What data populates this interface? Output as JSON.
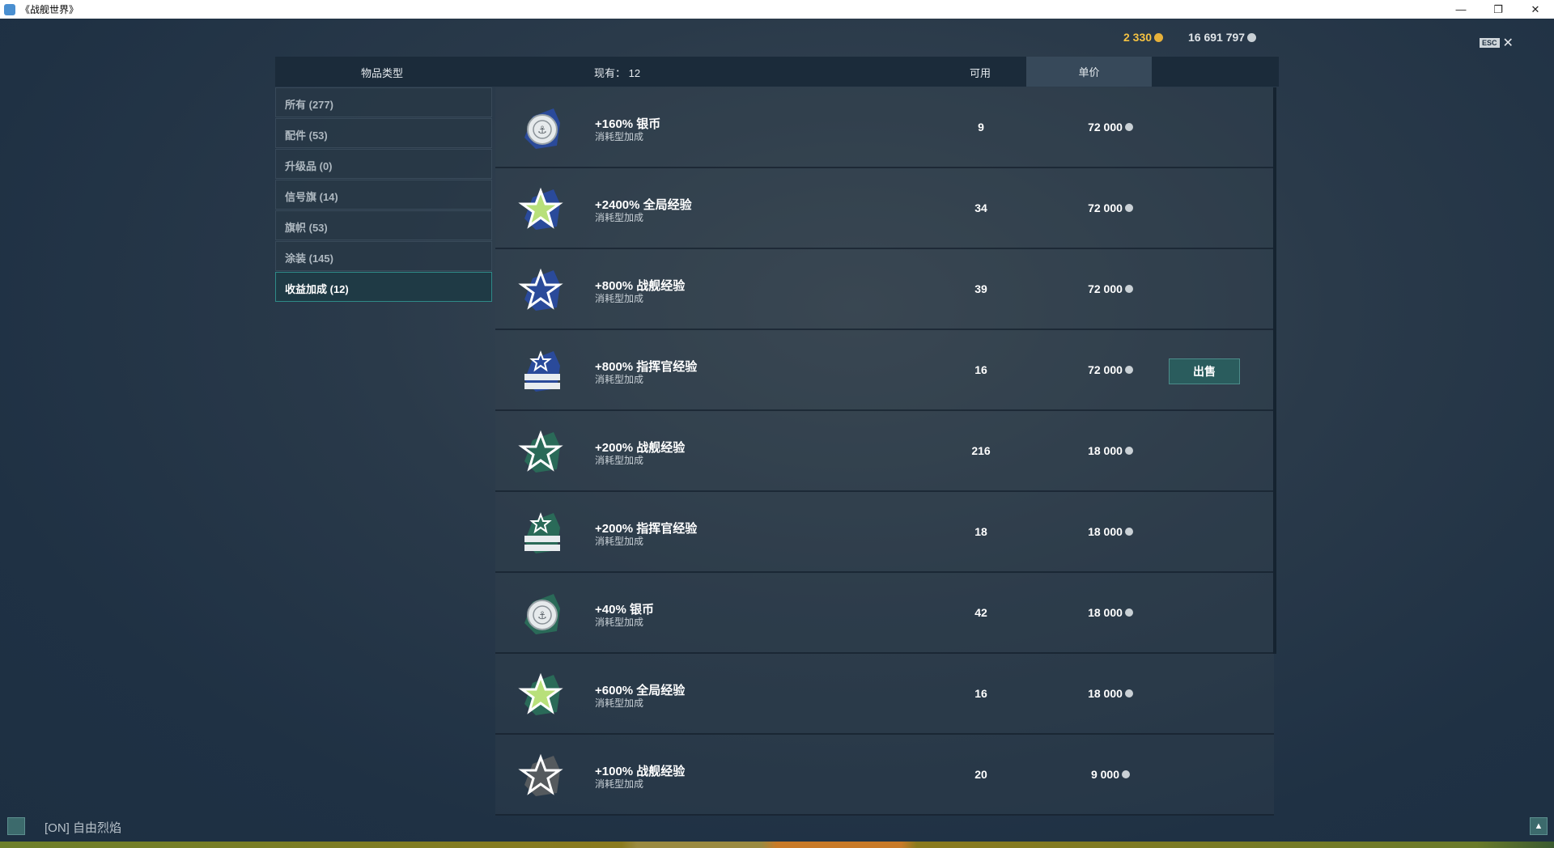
{
  "window": {
    "title": "《战舰世界》",
    "minimize": "—",
    "restore": "❐",
    "close": "✕"
  },
  "currency": {
    "gold": "2 330",
    "silver": "16 691 797"
  },
  "esc": {
    "key": "ESC",
    "close": "✕"
  },
  "header": {
    "item_type": "物品类型",
    "owned": "现有：  12",
    "available": "可用",
    "unit_price": "单价"
  },
  "sidebar": [
    {
      "label": "所有 (277)"
    },
    {
      "label": "配件 (53)"
    },
    {
      "label": "升级品 (0)"
    },
    {
      "label": "信号旗 (14)"
    },
    {
      "label": "旗帜 (53)"
    },
    {
      "label": "涂装 (145)"
    },
    {
      "label": "收益加成 (12)",
      "active": true
    }
  ],
  "items": [
    {
      "name": "+160% 银币",
      "type": "消耗型加成",
      "available": "9",
      "price": "72 000",
      "icon": "silver-coin-icon",
      "color": "#2a4a9a"
    },
    {
      "name": "+2400% 全局经验",
      "type": "消耗型加成",
      "available": "34",
      "price": "72 000",
      "icon": "green-star-icon",
      "color": "#2a4a9a"
    },
    {
      "name": "+800% 战舰经验",
      "type": "消耗型加成",
      "available": "39",
      "price": "72 000",
      "icon": "star-icon",
      "color": "#2a4a9a"
    },
    {
      "name": "+800% 指挥官经验",
      "type": "消耗型加成",
      "available": "16",
      "price": "72 000",
      "icon": "commander-icon",
      "color": "#2a4a9a",
      "action": "出售"
    },
    {
      "name": "+200% 战舰经验",
      "type": "消耗型加成",
      "available": "216",
      "price": "18 000",
      "icon": "star-icon",
      "color": "#2a6a58"
    },
    {
      "name": "+200% 指挥官经验",
      "type": "消耗型加成",
      "available": "18",
      "price": "18 000",
      "icon": "commander-icon",
      "color": "#2a6a58"
    },
    {
      "name": "+40% 银币",
      "type": "消耗型加成",
      "available": "42",
      "price": "18 000",
      "icon": "silver-coin-icon",
      "color": "#2a6a58"
    },
    {
      "name": "+600% 全局经验",
      "type": "消耗型加成",
      "available": "16",
      "price": "18 000",
      "icon": "green-star-icon",
      "color": "#2a6a58"
    },
    {
      "name": "+100% 战舰经验",
      "type": "消耗型加成",
      "available": "20",
      "price": "9 000",
      "icon": "star-icon",
      "color": "#555a5e"
    }
  ],
  "bottom": {
    "mode": "[ON]  自由烈焰"
  }
}
